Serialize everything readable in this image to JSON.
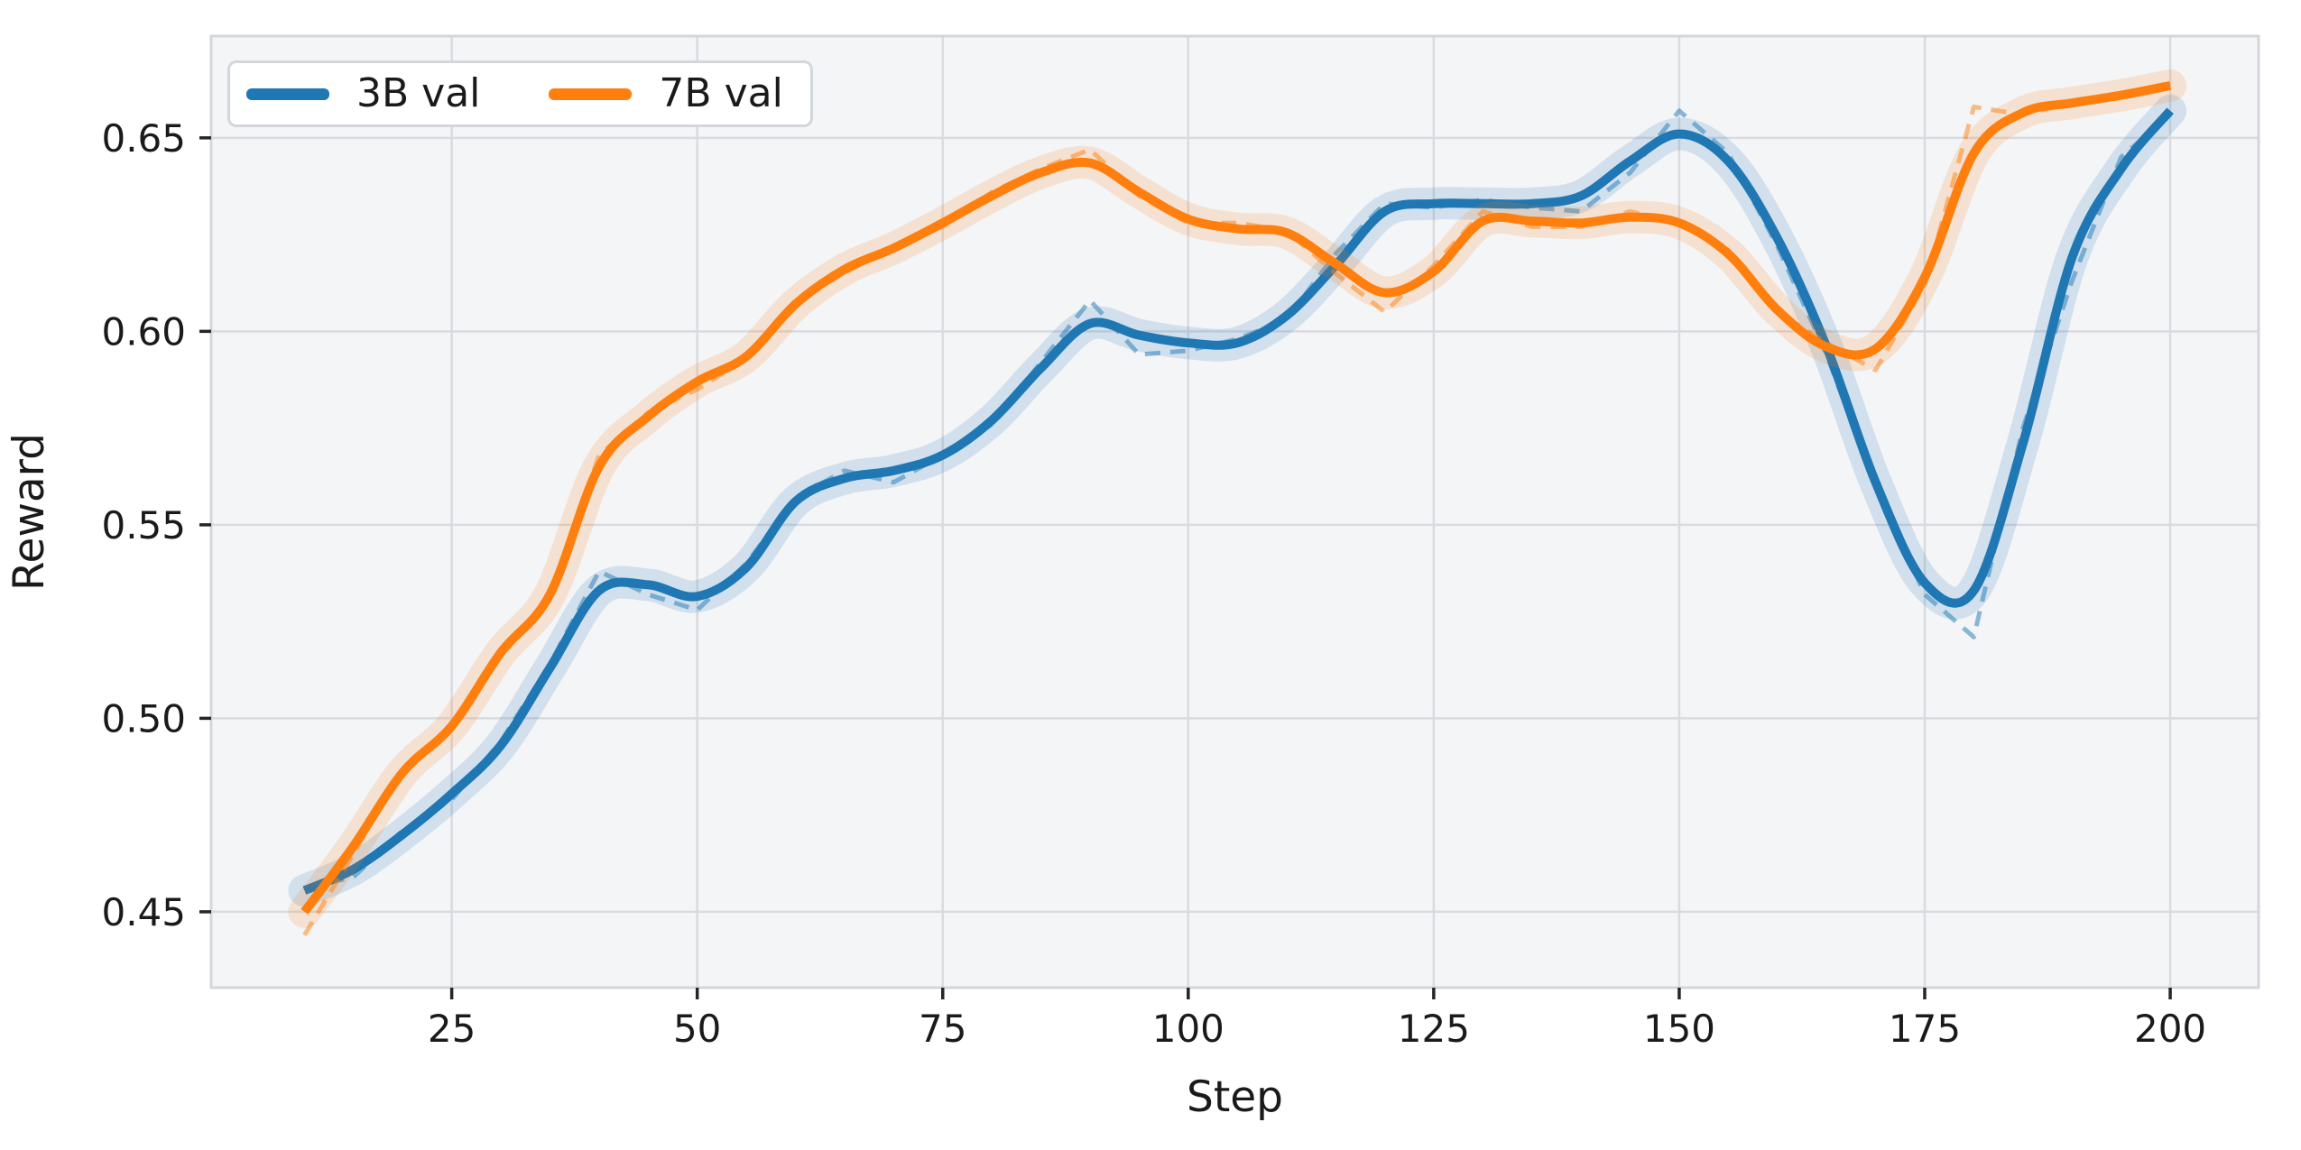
{
  "chart_data": {
    "type": "line",
    "title": "",
    "xlabel": "Step",
    "ylabel": "Reward",
    "grid": true,
    "legend_position": "top-left",
    "xlim": [
      0.5,
      209.0
    ],
    "ylim": [
      0.4304,
      0.6763
    ],
    "x_ticks": [
      25,
      50,
      75,
      100,
      125,
      150,
      175,
      200
    ],
    "x_tick_labels": [
      "25",
      "50",
      "75",
      "100",
      "125",
      "150",
      "175",
      "200"
    ],
    "y_ticks": [
      0.45,
      0.5,
      0.55,
      0.6,
      0.65
    ],
    "y_tick_labels": [
      "0.45",
      "0.50",
      "0.55",
      "0.60",
      "0.65"
    ],
    "x": [
      10,
      15,
      20,
      25,
      30,
      35,
      40,
      45,
      50,
      55,
      60,
      65,
      70,
      75,
      80,
      85,
      90,
      95,
      100,
      105,
      110,
      115,
      120,
      125,
      130,
      135,
      140,
      145,
      150,
      155,
      160,
      165,
      170,
      175,
      180,
      185,
      190,
      195,
      200
    ],
    "series": [
      {
        "name": "3B val",
        "color": "#1f77b4",
        "smoothed": [
          0.4555,
          0.461,
          0.47,
          0.4805,
          0.493,
          0.513,
          0.533,
          0.5345,
          0.5315,
          0.539,
          0.556,
          0.562,
          0.564,
          0.568,
          0.577,
          0.5905,
          0.602,
          0.599,
          0.597,
          0.597,
          0.604,
          0.617,
          0.631,
          0.633,
          0.633,
          0.633,
          0.635,
          0.644,
          0.651,
          0.644,
          0.624,
          0.596,
          0.561,
          0.535,
          0.533,
          0.571,
          0.619,
          0.642,
          0.657
        ],
        "raw": [
          0.456,
          0.459,
          0.471,
          0.479,
          0.494,
          0.514,
          0.538,
          0.532,
          0.528,
          0.54,
          0.557,
          0.564,
          0.561,
          0.568,
          0.576,
          0.592,
          0.608,
          0.594,
          0.595,
          0.598,
          0.603,
          0.62,
          0.633,
          0.632,
          0.634,
          0.632,
          0.631,
          0.641,
          0.657,
          0.646,
          0.622,
          0.594,
          0.56,
          0.532,
          0.521,
          0.575,
          0.613,
          0.645,
          0.656
        ]
      },
      {
        "name": "7B val",
        "color": "#ff7f0e",
        "smoothed": [
          0.45,
          0.467,
          0.486,
          0.498,
          0.517,
          0.532,
          0.565,
          0.578,
          0.587,
          0.5935,
          0.607,
          0.616,
          0.6215,
          0.628,
          0.635,
          0.641,
          0.6435,
          0.636,
          0.629,
          0.6265,
          0.6255,
          0.6175,
          0.61,
          0.6155,
          0.6285,
          0.6285,
          0.628,
          0.6295,
          0.628,
          0.62,
          0.6055,
          0.596,
          0.5955,
          0.614,
          0.646,
          0.6565,
          0.659,
          0.661,
          0.6635
        ],
        "raw": [
          0.444,
          0.465,
          0.487,
          0.497,
          0.516,
          0.531,
          0.568,
          0.579,
          0.585,
          0.593,
          0.608,
          0.615,
          0.622,
          0.627,
          0.636,
          0.642,
          0.647,
          0.635,
          0.628,
          0.628,
          0.626,
          0.615,
          0.605,
          0.617,
          0.631,
          0.627,
          0.627,
          0.631,
          0.628,
          0.621,
          0.605,
          0.597,
          0.59,
          0.612,
          0.658,
          0.656,
          0.659,
          0.661,
          0.664
        ]
      }
    ],
    "colors": {
      "axes_background": "#f4f5f7",
      "grid_color": "#d9dbe0",
      "spine_color": "#d3d6db",
      "tick_color": "#262626",
      "text_color": "#1a1a1a",
      "series_3b": "#1f77b4",
      "series_7b": "#ff7f0e"
    }
  }
}
